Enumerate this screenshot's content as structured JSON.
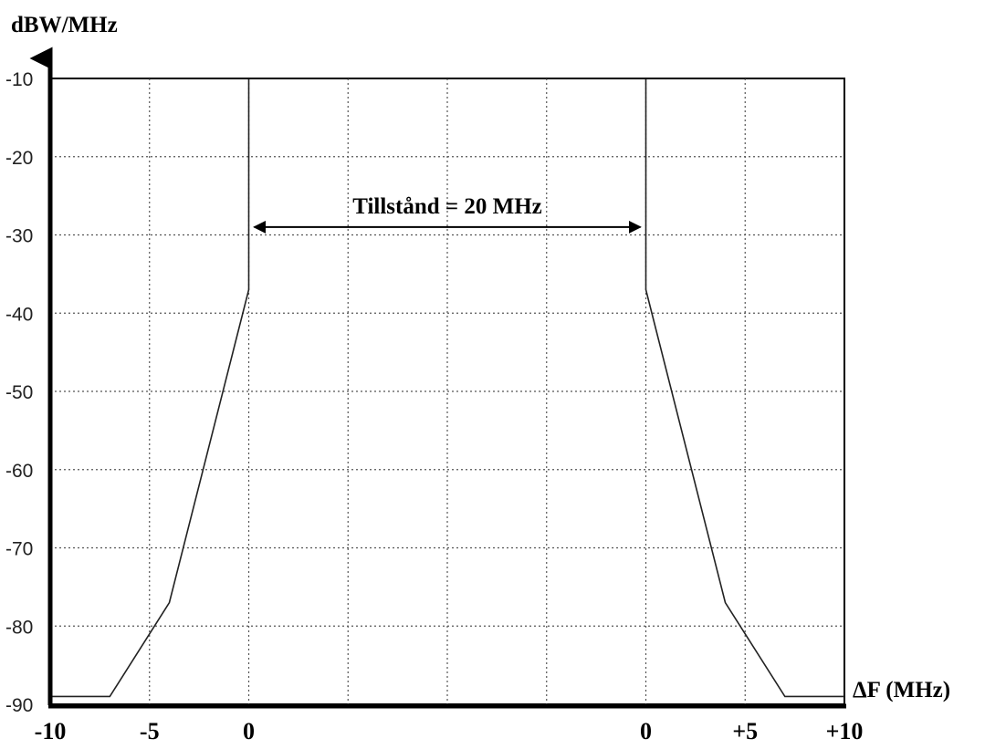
{
  "chart_data": {
    "type": "line",
    "ylabel": "dBW/MHz",
    "xlabel": "ΔF (MHz)",
    "ylim": [
      -90,
      -10
    ],
    "grid": true,
    "y_ticks": [
      "-10",
      "-20",
      "-30",
      "-40",
      "-50",
      "-60",
      "-70",
      "-80",
      "-90"
    ],
    "x_ticks": [
      "-10",
      "-5",
      "0",
      "0",
      "+5",
      "+10"
    ],
    "series": [
      {
        "x": [
          -10,
          -7,
          -4,
          0,
          0
        ],
        "y": [
          -89,
          -89,
          -77,
          -37,
          -10
        ]
      },
      {
        "x": [
          20,
          20,
          24,
          27,
          30
        ],
        "y": [
          -10,
          -37,
          -77,
          -89,
          -89
        ]
      }
    ],
    "annotation": {
      "text": "Tillstånd = 20 MHz",
      "x_from": 0,
      "x_to": 20,
      "y": -29
    },
    "colors": {
      "line": "#222222",
      "grid": "#555555",
      "axis": "#000000"
    }
  }
}
